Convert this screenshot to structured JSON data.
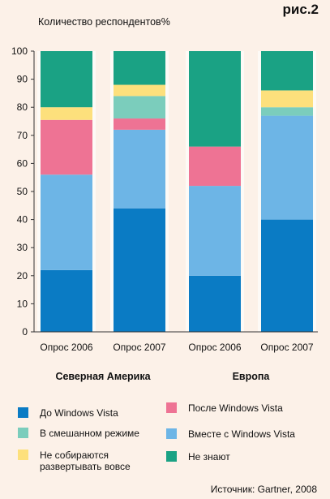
{
  "figure_label": "рис.2",
  "source": "Источник: Gartner, 2008",
  "chart_data": {
    "type": "bar",
    "stacked": true,
    "ylabel": "Количество респондентов%",
    "ylim": [
      0,
      100
    ],
    "yticks": [
      0,
      10,
      20,
      30,
      40,
      50,
      60,
      70,
      80,
      90,
      100
    ],
    "grid": false,
    "categories": [
      "Опрос 2006",
      "Опрос 2007",
      "Опрос 2006",
      "Опрос 2007"
    ],
    "groups": [
      {
        "label": "Северная Америка",
        "categories": [
          0,
          1
        ]
      },
      {
        "label": "Европа",
        "categories": [
          2,
          3
        ]
      }
    ],
    "series": [
      {
        "name": "До Windows Vista",
        "color": "#0a7bc4",
        "values": [
          22,
          44,
          20,
          40
        ]
      },
      {
        "name": "Вместе с Windows Vista",
        "color": "#6db5e6",
        "values": [
          34,
          28,
          32,
          37
        ]
      },
      {
        "name": "После Windows Vista",
        "color": "#ee7394",
        "values": [
          19.5,
          4,
          14,
          0
        ]
      },
      {
        "name": "В смешанном режиме",
        "color": "#7bcdbc",
        "values": [
          0,
          8,
          0,
          3
        ]
      },
      {
        "name": "Не собираются развертывать вовсе",
        "color": "#fde07c",
        "values": [
          4.5,
          4,
          0,
          6
        ]
      },
      {
        "name": "Не знают",
        "color": "#1aa284",
        "values": [
          20,
          12,
          34,
          14
        ]
      }
    ]
  },
  "legend": {
    "items": [
      {
        "label": "До Windows Vista",
        "color": "#0a7bc4"
      },
      {
        "label": "После Windows Vista",
        "color": "#ee7394"
      },
      {
        "label": "В смешанном режиме",
        "color": "#7bcdbc"
      },
      {
        "label": "Вместе с Windows Vista",
        "color": "#6db5e6"
      },
      {
        "label": "Не собираются развертывать вовсе",
        "color": "#fde07c"
      },
      {
        "label": "Не знают",
        "color": "#1aa284"
      }
    ]
  }
}
